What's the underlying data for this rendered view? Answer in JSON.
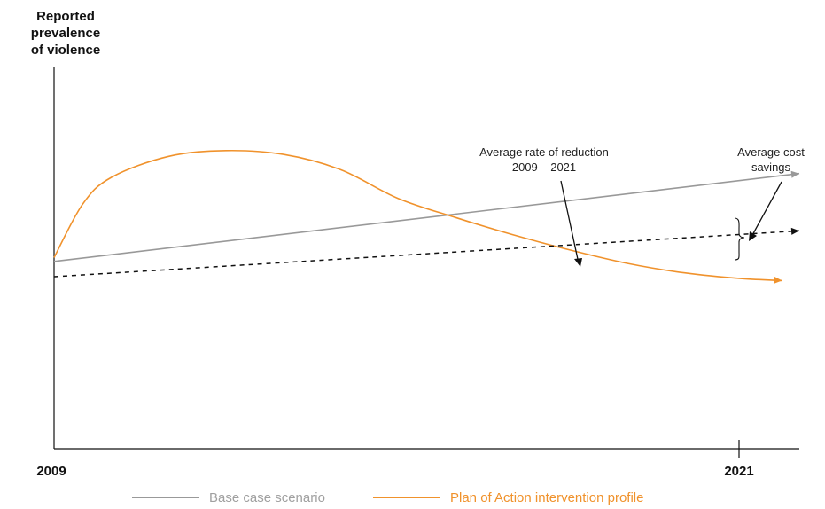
{
  "chart_data": {
    "type": "line",
    "title": "",
    "ylabel_lines": [
      "Reported",
      "prevalence",
      "of violence"
    ],
    "xlabel": "",
    "xlim": [
      2009,
      2022
    ],
    "ylim": [
      0,
      100
    ],
    "x_ticks": [
      "2009",
      "2021"
    ],
    "grid": false,
    "series": [
      {
        "name": "Base case scenario",
        "color": "#999999",
        "style": "solid-arrow",
        "x": [
          2009,
          2022
        ],
        "y": [
          49,
          72
        ]
      },
      {
        "name": "Plan of Action intervention profile",
        "color": "#f0922c",
        "style": "solid-arrow",
        "x": [
          2009,
          2009.5,
          2010,
          2011,
          2012,
          2013,
          2014,
          2015,
          2016,
          2017,
          2018,
          2019,
          2020,
          2021,
          2021.7
        ],
        "y": [
          50,
          64,
          71,
          76.5,
          78,
          77,
          73,
          65.5,
          60.5,
          56,
          52,
          48.5,
          46,
          44.5,
          44
        ]
      },
      {
        "color": "#111111",
        "style": "dashed-arrow",
        "x": [
          2009,
          2022
        ],
        "y": [
          45,
          57
        ]
      }
    ],
    "annotations": [
      {
        "lines": [
          "Average rate of reduction",
          "2009 – 2021"
        ]
      },
      {
        "lines": [
          "Average cost",
          "savings"
        ]
      }
    ]
  },
  "legend": {
    "items": [
      {
        "label": "Base case scenario",
        "color": "#999999"
      },
      {
        "label": "Plan of Action intervention profile",
        "color": "#f0922c"
      }
    ]
  }
}
